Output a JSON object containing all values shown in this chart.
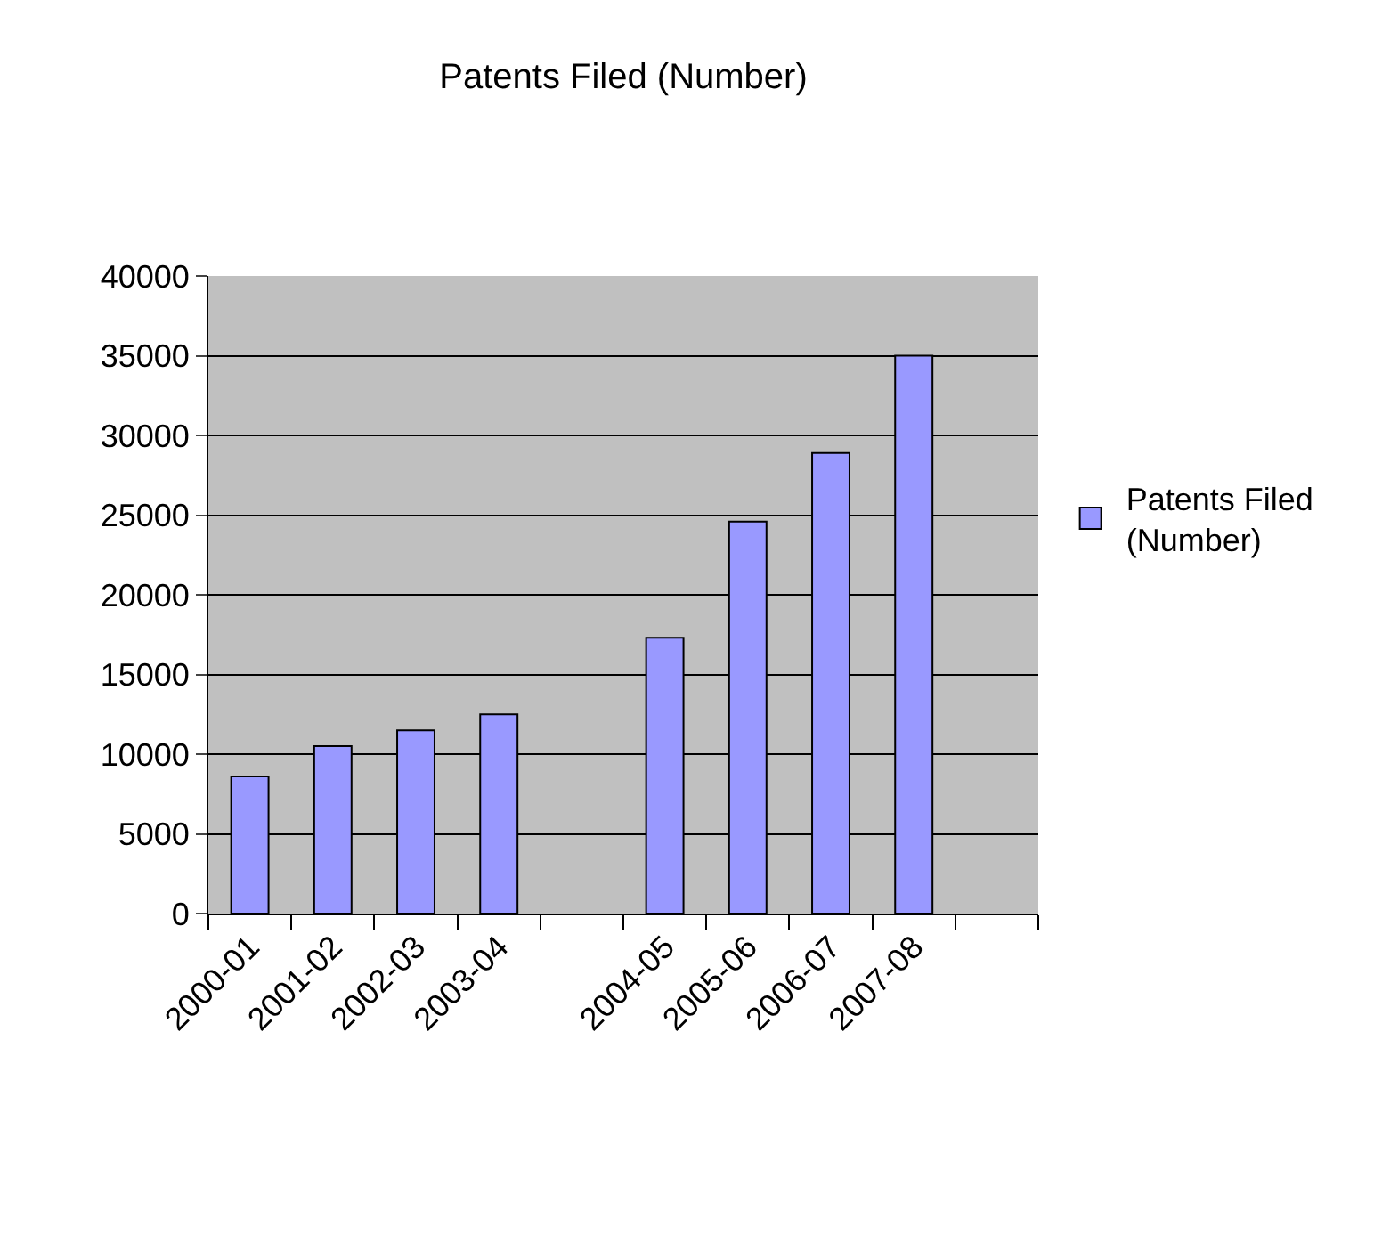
{
  "chart_data": {
    "type": "bar",
    "title": "Patents Filed (Number)",
    "categories": [
      "2000-01",
      "2001-02",
      "2002-03",
      "2003-04",
      null,
      "2004-05",
      "2005-06",
      "2006-07",
      "2007-08",
      null
    ],
    "series": [
      {
        "name": "Patents Filed (Number)",
        "color": "#9999ff",
        "values": [
          8600,
          10500,
          11500,
          12500,
          null,
          17300,
          24600,
          28900,
          35000,
          null
        ]
      }
    ],
    "ylim": [
      0,
      40000
    ],
    "yticks": [
      0,
      5000,
      10000,
      15000,
      20000,
      25000,
      30000,
      35000,
      40000
    ],
    "grid": "y",
    "legend": "right"
  }
}
